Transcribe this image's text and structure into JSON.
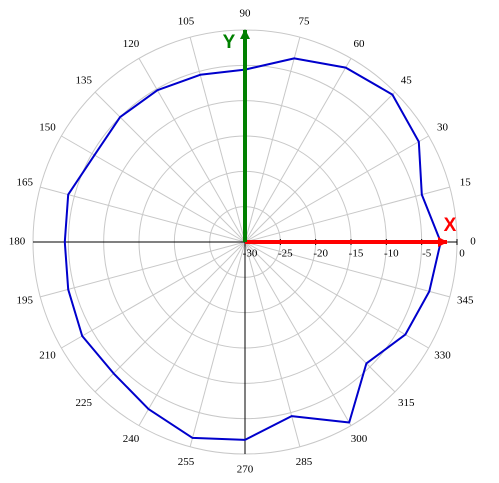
{
  "chart_data": {
    "type": "polar",
    "theta": [
      0,
      15,
      30,
      45,
      60,
      75,
      90,
      105,
      120,
      135,
      150,
      165,
      180,
      195,
      210,
      225,
      240,
      255,
      270,
      285,
      300,
      315,
      330,
      345
    ],
    "series": [
      {
        "color": "#0000cc",
        "values": [
          -2.3,
          -4.1,
          -1.6,
          -0.5,
          -1.5,
          -3.1,
          -5.6,
          -5.5,
          -5.2,
          -5.0,
          -5.4,
          -4.1,
          -4.5,
          -4.1,
          -3.4,
          -3.7,
          -2.7,
          -1.3,
          -2.0,
          -4.5,
          -0.5,
          -5.7,
          -3.8,
          -3.0
        ]
      }
    ],
    "rlim": [
      -30,
      0
    ],
    "rticks": [
      -30,
      -25,
      -20,
      -15,
      -10,
      -5,
      0
    ],
    "thetaticks": [
      0,
      15,
      30,
      45,
      60,
      75,
      90,
      105,
      120,
      135,
      150,
      165,
      180,
      195,
      210,
      225,
      240,
      255,
      270,
      285,
      300,
      315,
      330,
      345
    ],
    "annotations": [
      "X",
      "Y"
    ],
    "grid": true
  }
}
